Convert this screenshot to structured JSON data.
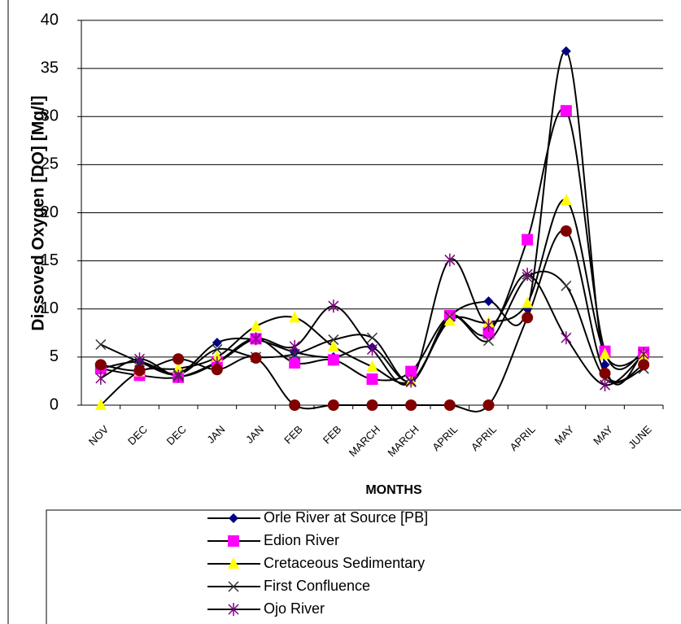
{
  "chart_data": {
    "type": "line",
    "y_label": "Dissoved Oxygen [DO] [Mg/l]",
    "x_label": "MONTHS",
    "categories": [
      "NOV",
      "DEC",
      "DEC",
      "JAN",
      "JAN",
      "FEB",
      "FEB",
      "MARCH",
      "MARCH",
      "APRIL",
      "APRIL",
      "APRIL",
      "MAY",
      "MAY",
      "JUNE"
    ],
    "ylim": [
      0,
      40
    ],
    "yticks": [
      0,
      5,
      10,
      15,
      20,
      25,
      30,
      35,
      40
    ],
    "grid": true,
    "line_color": "#000000",
    "smooth": true,
    "series": [
      {
        "name": "Orle River at Source [PB]",
        "color": "#000080",
        "marker": "diamond",
        "values": [
          3.8,
          4.5,
          3.3,
          6.5,
          6.8,
          5.5,
          5,
          6,
          2.5,
          9.2,
          10.8,
          10,
          36.8,
          4.2,
          5.5
        ]
      },
      {
        "name": "Edion River",
        "color": "#ff00ff",
        "marker": "square",
        "values": [
          3.8,
          3.1,
          2.9,
          4.5,
          6.9,
          4.4,
          4.7,
          2.7,
          3.5,
          9.3,
          7.5,
          17.2,
          30.6,
          5.6,
          5.5
        ]
      },
      {
        "name": "Cretaceous Sedimentary",
        "color": "#ffff00",
        "marker": "triangle",
        "values": [
          0,
          3.5,
          3.8,
          5,
          8.2,
          9.1,
          6.1,
          4,
          2.5,
          8.8,
          8.6,
          10.6,
          21.3,
          5.3,
          5.2
        ]
      },
      {
        "name": "First Confluence",
        "color": "#333333",
        "marker": "x",
        "values": [
          6.3,
          4.5,
          3.2,
          5.8,
          5,
          5.3,
          6.8,
          7,
          2.4,
          9.2,
          6.7,
          13.3,
          12.4,
          2.8,
          3.8
        ]
      },
      {
        "name": "Ojo River",
        "color": "#800080",
        "marker": "star",
        "values": [
          2.8,
          4.8,
          3,
          4.4,
          6.9,
          6.1,
          10.3,
          5.8,
          2.5,
          15.1,
          8.3,
          13.6,
          7,
          2.1,
          5.3
        ]
      },
      {
        "color": "#800000",
        "marker": "circle",
        "values": [
          4.2,
          3.6,
          4.8,
          3.7,
          4.9,
          0,
          0,
          0,
          0,
          0,
          0,
          9.1,
          18.1,
          3.3,
          4.2
        ]
      }
    ]
  }
}
